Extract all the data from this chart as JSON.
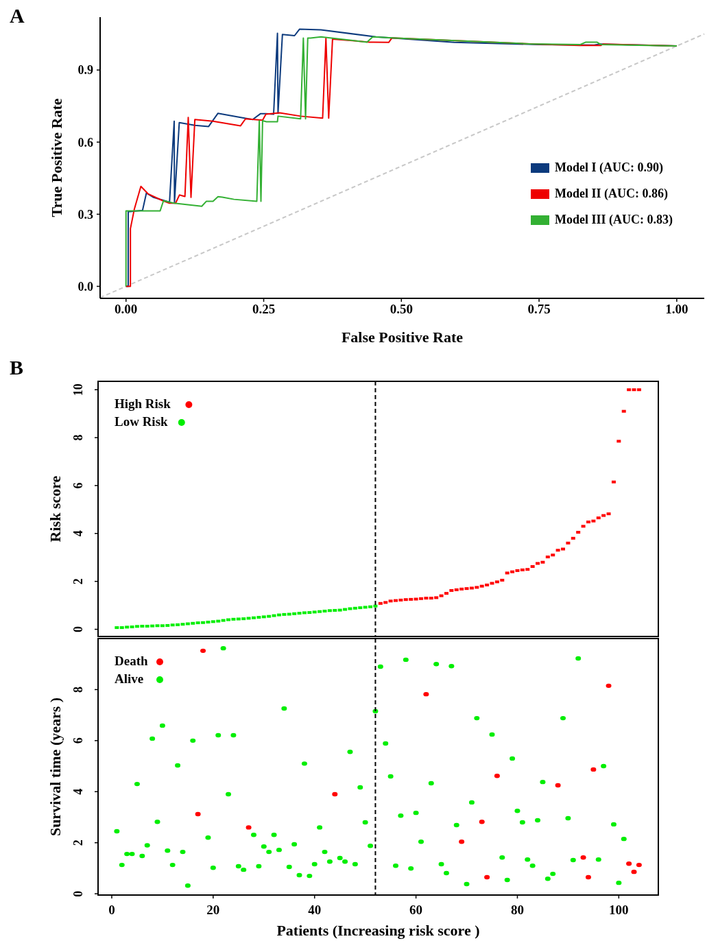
{
  "chart_data": [
    {
      "type": "line",
      "title": "A",
      "xlabel": "False Positive Rate",
      "ylabel": "True Positive Rate",
      "xlim": [
        -0.047,
        1.05
      ],
      "ylim": [
        -0.05,
        1.12
      ],
      "xticks": [
        {
          "value": 0,
          "label": "0.00"
        },
        {
          "value": 0.25,
          "label": "0.25"
        },
        {
          "value": 0.5,
          "label": "0.50"
        },
        {
          "value": 0.75,
          "label": "0.75"
        },
        {
          "value": 1,
          "label": "1.00"
        }
      ],
      "yticks": [
        {
          "value": 0,
          "label": "0.0"
        },
        {
          "value": 0.3,
          "label": "0.3"
        },
        {
          "value": 0.6,
          "label": "0.6"
        },
        {
          "value": 0.9,
          "label": "0.9"
        }
      ],
      "grid": false,
      "legend": "right",
      "series": [
        {
          "color": "#c8c8c8",
          "line_style": "dashed",
          "x": [
            -0.047,
            1.05
          ],
          "values": [
            -0.047,
            1.05
          ]
        },
        {
          "name": "Model I (AUC: 0.90)",
          "color": "#0c3a7d",
          "x": [
            0,
            0.004,
            0.004,
            0.03,
            0.037,
            0.05,
            0.079,
            0.0875,
            0.088,
            0.0967,
            0.125,
            0.15,
            0.167,
            0.217,
            0.23,
            0.244,
            0.254,
            0.268,
            0.275,
            0.276,
            0.284,
            0.306,
            0.315,
            0.354,
            0.454,
            0.596,
            0.75,
            0.85,
            0.86,
            1.0
          ],
          "values": [
            0,
            0,
            0.31,
            0.316,
            0.388,
            0.37,
            0.35,
            0.687,
            0.35,
            0.681,
            0.67,
            0.665,
            0.72,
            0.699,
            0.694,
            0.718,
            0.718,
            0.716,
            1.053,
            0.72,
            1.048,
            1.043,
            1.07,
            1.067,
            1.038,
            1.015,
            1.006,
            1.004,
            1.008,
            1.0
          ]
        },
        {
          "name": "Model II (AUC: 0.86)",
          "color": "#ee0000",
          "x": [
            0,
            0.008,
            0.008,
            0.015,
            0.027,
            0.04,
            0.067,
            0.079,
            0.09,
            0.097,
            0.107,
            0.113,
            0.118,
            0.125,
            0.158,
            0.208,
            0.217,
            0.248,
            0.254,
            0.279,
            0.317,
            0.357,
            0.363,
            0.368,
            0.375,
            0.442,
            0.449,
            0.477,
            0.483,
            0.519,
            0.733,
            0.824,
            0.862,
            0.866,
            1.0
          ],
          "values": [
            0,
            0,
            0.24,
            0.32,
            0.416,
            0.385,
            0.356,
            0.346,
            0.346,
            0.38,
            0.374,
            0.703,
            0.37,
            0.694,
            0.687,
            0.668,
            0.697,
            0.691,
            0.716,
            0.722,
            0.708,
            0.7,
            1.032,
            0.7,
            1.029,
            1.016,
            1.016,
            1.015,
            1.034,
            1.03,
            1.009,
            1.002,
            1.002,
            1.008,
            1.0
          ]
        },
        {
          "name": "Model III (AUC: 0.83)",
          "color": "#33b033",
          "x": [
            0,
            0,
            0.062,
            0.068,
            0.0875,
            0.1375,
            0.146,
            0.158,
            0.167,
            0.175,
            0.196,
            0.2375,
            0.242,
            0.245,
            0.248,
            0.255,
            0.275,
            0.276,
            0.317,
            0.322,
            0.326,
            0.33,
            0.335,
            0.354,
            0.362,
            0.4375,
            0.448,
            0.467,
            0.483,
            0.519,
            0.733,
            0.825,
            0.835,
            0.855,
            0.862,
            1.0
          ],
          "values": [
            0,
            0.314,
            0.314,
            0.356,
            0.346,
            0.333,
            0.354,
            0.354,
            0.373,
            0.371,
            0.362,
            0.354,
            0.689,
            0.354,
            0.689,
            0.685,
            0.685,
            0.708,
            0.697,
            1.033,
            0.697,
            1.033,
            1.033,
            1.038,
            1.036,
            1.016,
            1.038,
            1.036,
            1.034,
            1.03,
            1.009,
            1.006,
            1.016,
            1.016,
            1.006,
            1.0
          ]
        }
      ]
    },
    {
      "type": "scatter",
      "title": "B",
      "ylabel": "Risk score",
      "xlim": [
        -2.7,
        107.8
      ],
      "ylim": [
        -0.3,
        10.35
      ],
      "yticks": [
        0,
        2,
        4,
        6,
        8,
        10
      ],
      "tick_labels": "y",
      "grid": false,
      "legend": "top left",
      "marker": "square",
      "ref_lines": [
        {
          "axis": "x",
          "value": 52,
          "color": "#000000",
          "line_style": "dashed"
        }
      ],
      "series": [
        {
          "name": "High Risk",
          "color": "#ff0000",
          "x": [
            53,
            54,
            55,
            56,
            57,
            58,
            59,
            60,
            61,
            62,
            63,
            64,
            65,
            66,
            67,
            68,
            69,
            70,
            71,
            72,
            73,
            74,
            75,
            76,
            77,
            78,
            79,
            80,
            81,
            82,
            83,
            84,
            85,
            86,
            87,
            88,
            89,
            90,
            91,
            92,
            93,
            94,
            95,
            96,
            97,
            98,
            99,
            100,
            101,
            102,
            103,
            104
          ],
          "values": [
            1.08,
            1.12,
            1.18,
            1.2,
            1.22,
            1.24,
            1.25,
            1.26,
            1.28,
            1.3,
            1.3,
            1.32,
            1.4,
            1.5,
            1.62,
            1.65,
            1.68,
            1.7,
            1.72,
            1.75,
            1.8,
            1.85,
            1.92,
            1.98,
            2.05,
            2.35,
            2.4,
            2.45,
            2.48,
            2.5,
            2.62,
            2.75,
            2.8,
            3.02,
            3.1,
            3.3,
            3.35,
            3.6,
            3.8,
            4.05,
            4.3,
            4.48,
            4.52,
            4.65,
            4.75,
            4.82,
            6.15,
            7.85,
            9.1,
            10.0,
            10.0,
            10.0
          ]
        },
        {
          "name": "Low Risk",
          "color": "#00ee00",
          "x": [
            1,
            2,
            3,
            4,
            5,
            6,
            7,
            8,
            9,
            10,
            11,
            12,
            13,
            14,
            15,
            16,
            17,
            18,
            19,
            20,
            21,
            22,
            23,
            24,
            25,
            26,
            27,
            28,
            29,
            30,
            31,
            32,
            33,
            34,
            35,
            36,
            37,
            38,
            39,
            40,
            41,
            42,
            43,
            44,
            45,
            46,
            47,
            48,
            49,
            50,
            51,
            52
          ],
          "values": [
            0.07,
            0.07,
            0.09,
            0.1,
            0.12,
            0.13,
            0.13,
            0.14,
            0.15,
            0.15,
            0.16,
            0.18,
            0.19,
            0.21,
            0.23,
            0.25,
            0.27,
            0.28,
            0.3,
            0.32,
            0.34,
            0.37,
            0.4,
            0.42,
            0.43,
            0.44,
            0.46,
            0.48,
            0.5,
            0.52,
            0.54,
            0.57,
            0.6,
            0.62,
            0.63,
            0.65,
            0.67,
            0.69,
            0.7,
            0.72,
            0.74,
            0.76,
            0.78,
            0.79,
            0.8,
            0.83,
            0.86,
            0.88,
            0.9,
            0.92,
            0.94,
            0.97
          ]
        }
      ]
    },
    {
      "type": "scatter",
      "xlabel": "Patients (Increasing risk score )",
      "ylabel": "Survival time (years )",
      "xlim": [
        -2.7,
        107.8
      ],
      "ylim": [
        -0.05,
        10.0
      ],
      "xticks": [
        0,
        20,
        40,
        60,
        80,
        100
      ],
      "yticks": [
        0,
        2,
        4,
        6,
        8
      ],
      "grid": false,
      "legend": "top left",
      "marker": "circle",
      "ref_lines": [
        {
          "axis": "x",
          "value": 52,
          "color": "#000000",
          "line_style": "dashed"
        }
      ],
      "series": [
        {
          "name": "Death",
          "color": "#ff0000",
          "x": [
            17,
            18,
            27,
            44,
            62,
            69,
            73,
            74,
            76,
            88,
            93,
            94,
            95,
            98,
            102,
            103,
            104
          ],
          "values": [
            3.12,
            9.52,
            2.6,
            3.9,
            7.82,
            2.04,
            2.82,
            0.65,
            4.62,
            4.25,
            1.42,
            0.65,
            4.87,
            8.15,
            1.18,
            0.86,
            1.13
          ]
        },
        {
          "name": "Alive",
          "color": "#00ee00",
          "x": [
            1,
            2,
            3,
            4,
            5,
            6,
            7,
            8,
            9,
            10,
            11,
            12,
            13,
            14,
            15,
            16,
            19,
            20,
            21,
            22,
            23,
            24,
            25,
            26,
            28,
            29,
            30,
            31,
            32,
            33,
            34,
            35,
            36,
            37,
            38,
            39,
            40,
            41,
            42,
            43,
            45,
            46,
            47,
            48,
            49,
            50,
            51,
            52,
            53,
            54,
            55,
            56,
            57,
            58,
            59,
            60,
            61,
            63,
            64,
            65,
            66,
            67,
            68,
            70,
            71,
            72,
            75,
            77,
            78,
            79,
            80,
            81,
            82,
            83,
            84,
            85,
            86,
            87,
            89,
            90,
            91,
            92,
            96,
            97,
            99,
            100,
            101
          ],
          "values": [
            2.45,
            1.13,
            1.56,
            1.56,
            4.3,
            1.48,
            1.9,
            6.08,
            2.82,
            6.59,
            1.69,
            1.13,
            5.03,
            1.64,
            0.32,
            6.0,
            2.2,
            1.02,
            6.21,
            9.62,
            3.9,
            6.21,
            1.08,
            0.94,
            2.31,
            1.08,
            1.85,
            1.64,
            2.31,
            1.72,
            7.26,
            1.05,
            1.94,
            0.73,
            5.1,
            0.7,
            1.16,
            2.6,
            1.64,
            1.26,
            1.4,
            1.26,
            5.56,
            1.16,
            4.17,
            2.8,
            1.88,
            7.15,
            8.9,
            5.89,
            4.6,
            1.1,
            3.06,
            9.17,
            0.99,
            3.17,
            2.04,
            4.33,
            9.0,
            1.16,
            0.81,
            8.92,
            2.69,
            0.38,
            3.58,
            6.88,
            6.24,
            1.42,
            0.54,
            5.3,
            3.25,
            2.8,
            1.34,
            1.1,
            2.88,
            4.38,
            0.59,
            0.78,
            6.88,
            2.96,
            1.32,
            9.22,
            1.34,
            5.0,
            2.72,
            0.43,
            2.15
          ]
        }
      ]
    }
  ]
}
